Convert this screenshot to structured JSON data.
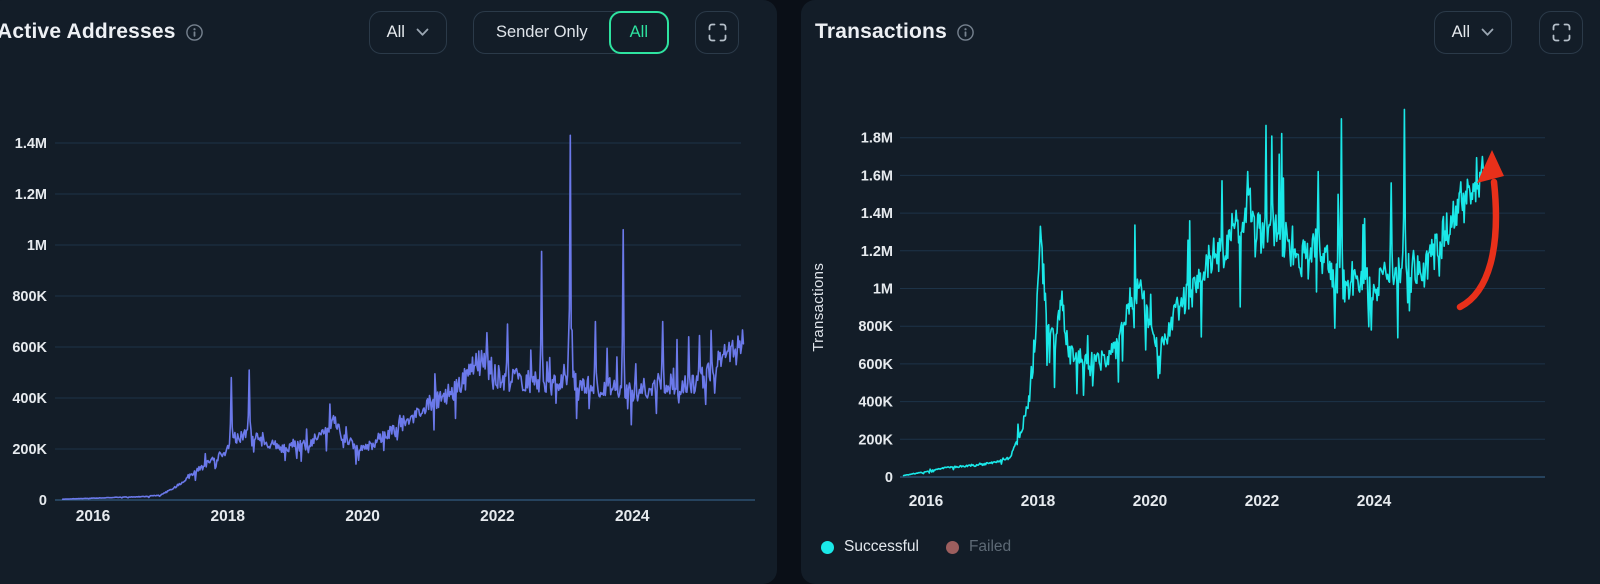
{
  "left_panel": {
    "title": "Active Addresses",
    "dropdown_label": "All",
    "toggle": {
      "options": [
        "Sender Only",
        "All"
      ],
      "selected": "All"
    }
  },
  "right_panel": {
    "title": "Transactions",
    "dropdown_label": "All"
  },
  "colors": {
    "panel_bg": "#131d28",
    "page_bg": "#0a0f17",
    "accent_green": "#2ee3a0",
    "grid": "#1d3348",
    "axis_line": "#2d5071",
    "tick_text": "#e6eaee",
    "muted_text": "#5d6975",
    "line_left": "#6b79ea",
    "line_right": "#1ae8e8",
    "failed_dot": "#9c5e5e",
    "arrow_red": "#e8301a"
  },
  "chart_data": [
    {
      "type": "line",
      "title": "Active Addresses",
      "xlabel": "",
      "ylabel": "",
      "y_unit": "thousands",
      "xlim": [
        2015.55,
        2025.65
      ],
      "ylim": [
        0,
        1500
      ],
      "grid": "horizontal",
      "legend_position": "none",
      "yticks": [
        {
          "label": "0",
          "v": 0
        },
        {
          "label": "200K",
          "v": 200
        },
        {
          "label": "400K",
          "v": 400
        },
        {
          "label": "600K",
          "v": 600
        },
        {
          "label": "800K",
          "v": 800
        },
        {
          "label": "1M",
          "v": 1000
        },
        {
          "label": "1.2M",
          "v": 1200
        },
        {
          "label": "1.4M",
          "v": 1400
        }
      ],
      "xticks": [
        {
          "label": "2016",
          "v": 2016
        },
        {
          "label": "2018",
          "v": 2018
        },
        {
          "label": "2020",
          "v": 2020
        },
        {
          "label": "2022",
          "v": 2022
        },
        {
          "label": "2024",
          "v": 2024
        }
      ],
      "series": [
        {
          "name": "Active Addresses",
          "color": "#6b79ea",
          "samples": 760,
          "noise": 0.1,
          "seed": 42,
          "keypoints": [
            [
              2015.55,
              3
            ],
            [
              2016.2,
              9
            ],
            [
              2016.7,
              13
            ],
            [
              2017.0,
              18
            ],
            [
              2017.25,
              55
            ],
            [
              2017.5,
              110
            ],
            [
              2017.75,
              150
            ],
            [
              2017.95,
              190
            ],
            [
              2018.1,
              245
            ],
            [
              2018.3,
              255
            ],
            [
              2018.55,
              230
            ],
            [
              2018.8,
              205
            ],
            [
              2019.1,
              215
            ],
            [
              2019.4,
              250
            ],
            [
              2019.55,
              315
            ],
            [
              2019.75,
              235
            ],
            [
              2019.95,
              205
            ],
            [
              2020.2,
              225
            ],
            [
              2020.5,
              280
            ],
            [
              2020.8,
              345
            ],
            [
              2021.1,
              395
            ],
            [
              2021.4,
              430
            ],
            [
              2021.65,
              520
            ],
            [
              2021.8,
              545
            ],
            [
              2022.0,
              480
            ],
            [
              2022.3,
              470
            ],
            [
              2022.6,
              455
            ],
            [
              2022.9,
              450
            ],
            [
              2023.2,
              465
            ],
            [
              2023.5,
              440
            ],
            [
              2023.8,
              435
            ],
            [
              2024.1,
              430
            ],
            [
              2024.4,
              465
            ],
            [
              2024.7,
              455
            ],
            [
              2024.95,
              445
            ],
            [
              2025.15,
              510
            ],
            [
              2025.35,
              550
            ],
            [
              2025.55,
              590
            ],
            [
              2025.65,
              640
            ]
          ],
          "spikes": [
            [
              2018.05,
              480
            ],
            [
              2018.32,
              510
            ],
            [
              2022.15,
              690
            ],
            [
              2022.65,
              975
            ],
            [
              2023.08,
              1430
            ],
            [
              2023.45,
              700
            ],
            [
              2023.87,
              1060
            ],
            [
              2024.45,
              700
            ],
            [
              2025.0,
              645
            ]
          ]
        }
      ]
    },
    {
      "type": "line",
      "title": "Transactions",
      "xlabel": "",
      "ylabel": "Transactions",
      "y_unit": "thousands",
      "xlim": [
        2015.6,
        2025.95
      ],
      "ylim": [
        0,
        2000
      ],
      "grid": "horizontal",
      "legend_position": "bottom-left",
      "yticks": [
        {
          "label": "0",
          "v": 0
        },
        {
          "label": "200K",
          "v": 200
        },
        {
          "label": "400K",
          "v": 400
        },
        {
          "label": "600K",
          "v": 600
        },
        {
          "label": "800K",
          "v": 800
        },
        {
          "label": "1M",
          "v": 1000
        },
        {
          "label": "1.2M",
          "v": 1200
        },
        {
          "label": "1.4M",
          "v": 1400
        },
        {
          "label": "1.6M",
          "v": 1600
        },
        {
          "label": "1.8M",
          "v": 1800
        }
      ],
      "xticks": [
        {
          "label": "2016",
          "v": 2016
        },
        {
          "label": "2018",
          "v": 2018
        },
        {
          "label": "2020",
          "v": 2020
        },
        {
          "label": "2022",
          "v": 2022
        },
        {
          "label": "2024",
          "v": 2024
        }
      ],
      "series": [
        {
          "name": "Successful",
          "color": "#1ae8e8",
          "samples": 700,
          "noise": 0.085,
          "seed": 7,
          "keypoints": [
            [
              2015.6,
              8
            ],
            [
              2016.0,
              28
            ],
            [
              2016.35,
              50
            ],
            [
              2016.85,
              60
            ],
            [
              2017.2,
              75
            ],
            [
              2017.5,
              105
            ],
            [
              2017.7,
              240
            ],
            [
              2017.85,
              430
            ],
            [
              2017.95,
              700
            ],
            [
              2018.05,
              1280
            ],
            [
              2018.15,
              850
            ],
            [
              2018.3,
              700
            ],
            [
              2018.42,
              930
            ],
            [
              2018.55,
              650
            ],
            [
              2018.85,
              620
            ],
            [
              2019.15,
              600
            ],
            [
              2019.4,
              690
            ],
            [
              2019.6,
              900
            ],
            [
              2019.8,
              1020
            ],
            [
              2019.95,
              860
            ],
            [
              2020.15,
              660
            ],
            [
              2020.5,
              890
            ],
            [
              2020.8,
              1000
            ],
            [
              2021.05,
              1140
            ],
            [
              2021.35,
              1220
            ],
            [
              2021.6,
              1350
            ],
            [
              2021.75,
              1470
            ],
            [
              2021.95,
              1280
            ],
            [
              2022.15,
              1320
            ],
            [
              2022.45,
              1240
            ],
            [
              2022.7,
              1150
            ],
            [
              2022.95,
              1240
            ],
            [
              2023.2,
              1120
            ],
            [
              2023.5,
              1000
            ],
            [
              2023.75,
              1060
            ],
            [
              2024.0,
              990
            ],
            [
              2024.25,
              1090
            ],
            [
              2024.6,
              1140
            ],
            [
              2024.9,
              1090
            ],
            [
              2025.15,
              1230
            ],
            [
              2025.45,
              1400
            ],
            [
              2025.75,
              1540
            ],
            [
              2025.95,
              1620
            ]
          ],
          "spikes": [
            [
              2018.05,
              1330
            ],
            [
              2021.75,
              1620
            ],
            [
              2023.0,
              1620
            ],
            [
              2023.3,
              790
            ],
            [
              2023.42,
              1900
            ],
            [
              2023.95,
              780
            ],
            [
              2024.3,
              1560
            ],
            [
              2024.55,
              1950
            ],
            [
              2025.93,
              1700
            ]
          ]
        }
      ],
      "legend": [
        {
          "label": "Successful",
          "color": "#1ae8e8",
          "muted": false
        },
        {
          "label": "Failed",
          "color": "#9c5e5e",
          "muted": true
        }
      ],
      "annotation": {
        "type": "arrow",
        "color": "#e8301a",
        "meaning": "sharp rise at end of series"
      }
    }
  ]
}
